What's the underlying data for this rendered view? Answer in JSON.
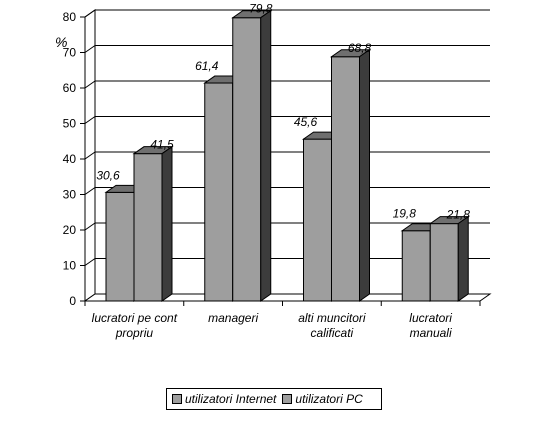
{
  "chart_data": {
    "type": "bar",
    "title": "",
    "xlabel": "",
    "ylabel": "%",
    "ylim": [
      0,
      80
    ],
    "yticks": [
      "0",
      "10",
      "20",
      "30",
      "40",
      "50",
      "60",
      "70",
      "80"
    ],
    "grid": true,
    "three_d": true,
    "legend_position": "bottom",
    "categories": [
      [
        "lucratori pe cont",
        "propriu"
      ],
      [
        "manageri"
      ],
      [
        "alti muncitori",
        "calificati"
      ],
      [
        "lucratori",
        "manuali"
      ]
    ],
    "series": [
      {
        "name": "utilizatori Internet",
        "values": [
          30.6,
          61.4,
          45.6,
          19.8
        ],
        "labels": [
          "30,6",
          "61,4",
          "45,6",
          "19,8"
        ],
        "color": "#9e9e9e"
      },
      {
        "name": "utilizatori PC",
        "values": [
          41.5,
          79.8,
          68.8,
          21.8
        ],
        "labels": [
          "41,5",
          "79,8",
          "68,8",
          "21,8"
        ],
        "color": "#9e9e9e"
      }
    ]
  }
}
